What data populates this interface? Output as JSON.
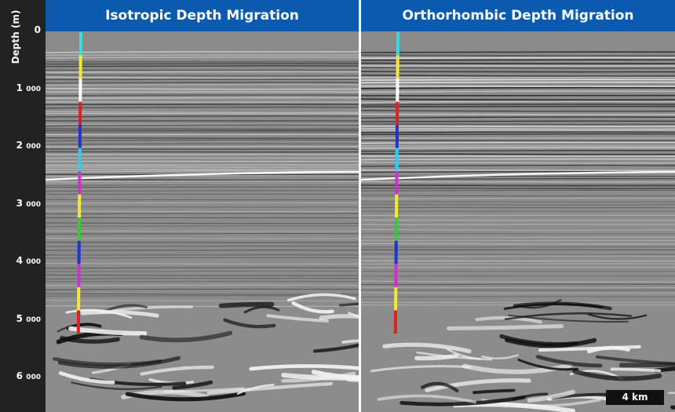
{
  "axis": {
    "title": "Depth (m)",
    "ticks": [
      {
        "thousands": "",
        "rest": "0",
        "depth": 0
      },
      {
        "thousands": "1",
        "rest": "000",
        "depth": 1000
      },
      {
        "thousands": "2",
        "rest": "000",
        "depth": 2000
      },
      {
        "thousands": "3",
        "rest": "000",
        "depth": 3000
      },
      {
        "thousands": "4",
        "rest": "000",
        "depth": 4000
      },
      {
        "thousands": "5",
        "rest": "000",
        "depth": 5000
      },
      {
        "thousands": "6",
        "rest": "000",
        "depth": 6000
      }
    ]
  },
  "panels": [
    {
      "title": "Isotropic Depth Migration"
    },
    {
      "title": "Orthorhombic Depth Migration"
    }
  ],
  "scale_bar": {
    "label": "4 km"
  },
  "well_log_colors": [
    "#33dddd",
    "#f0e83a",
    "#ffffff",
    "#dd2222",
    "#2233cc",
    "#33ccee",
    "#cc33cc",
    "#f0e83a",
    "#33cc33",
    "#2233cc",
    "#cc33cc",
    "#f0e83a",
    "#dd2222"
  ],
  "colors": {
    "header": "#0a5bb0",
    "axis_bg": "#222222",
    "seismic_bg": "#888888"
  }
}
